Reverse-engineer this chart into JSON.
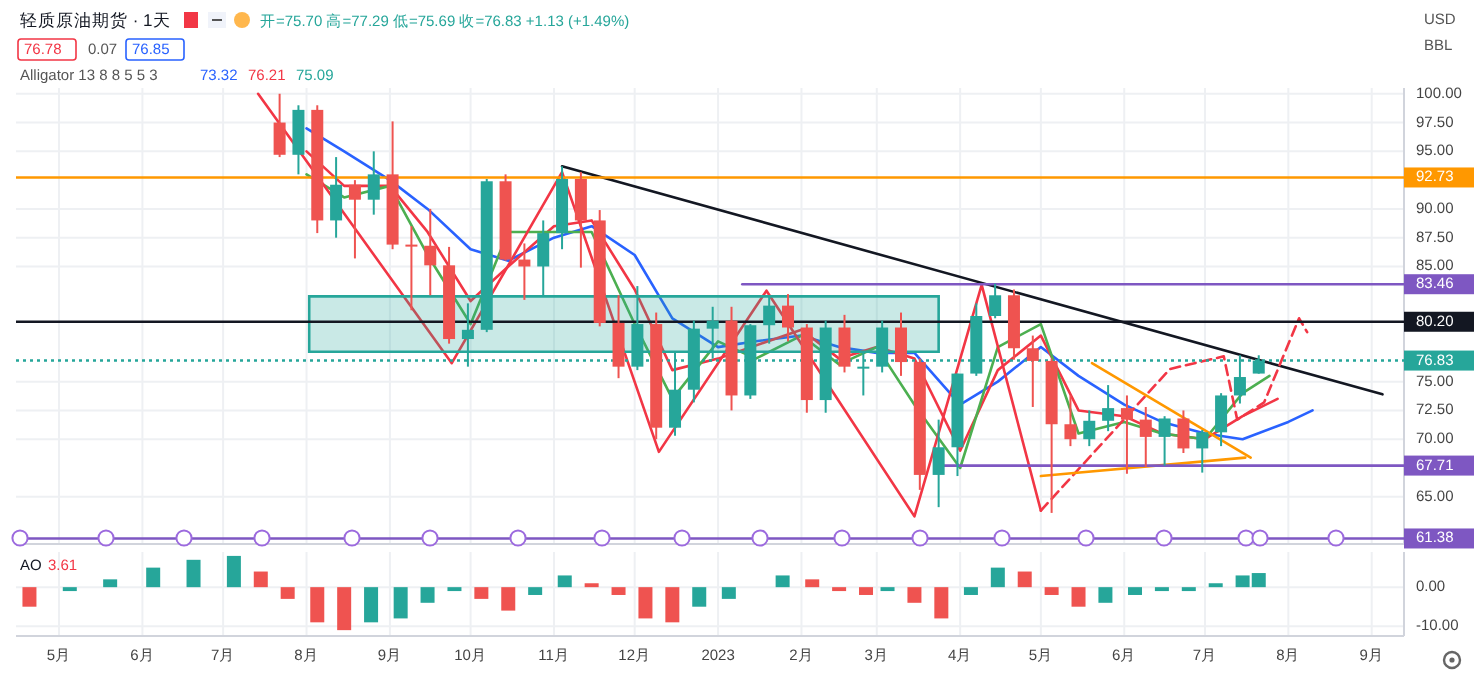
{
  "chart_data": [
    {
      "type": "candlestick",
      "title": "轻质原油期货 · 1天",
      "annotations": [
        "开=75.70 高=77.29 低=75.69 收=76.83 +1.13 (+1.49%)",
        "76.78",
        "0.07",
        "76.85",
        "Alligator 13 8 8 5 5 3",
        "73.32",
        "76.21",
        "75.09",
        "USD",
        "BBL"
      ],
      "xlim": [
        "2022-04-15",
        "2023-09-13"
      ],
      "ylim": [
        60.9,
        100.5
      ],
      "xticks": [
        {
          "value": "2022-05-01",
          "label": null
        },
        {
          "value": "2022-06-01",
          "label": null
        },
        {
          "value": "2022-07-01",
          "label": null
        },
        {
          "value": "2022-08-01",
          "label": null
        },
        {
          "value": "2022-09-01",
          "label": null
        },
        {
          "value": "2022-10-01",
          "label": null
        },
        {
          "value": "2022-11-01",
          "label": null
        },
        {
          "value": "2022-12-01",
          "label": null
        },
        {
          "value": "2023-01-01",
          "label": null
        },
        {
          "value": "2023-02-01",
          "label": null
        },
        {
          "value": "2023-03-01",
          "label": null
        },
        {
          "value": "2023-04-01",
          "label": null
        },
        {
          "value": "2023-05-01",
          "label": null
        },
        {
          "value": "2023-06-01",
          "label": null
        },
        {
          "value": "2023-07-01",
          "label": null
        },
        {
          "value": "2023-08-01",
          "label": null
        },
        {
          "value": "2023-09-01",
          "label": null
        }
      ],
      "yticks": [
        {
          "value": 100,
          "label": "100.00"
        },
        {
          "value": 97.5,
          "label": "97.50"
        },
        {
          "value": 95,
          "label": "95.00"
        },
        {
          "value": 90,
          "label": "90.00"
        },
        {
          "value": 87.5,
          "label": "87.50"
        },
        {
          "value": 85,
          "label": "85.00"
        },
        {
          "value": 75,
          "label": "75.00"
        },
        {
          "value": 72.5,
          "label": "72.50"
        },
        {
          "value": 70,
          "label": "70.00"
        },
        {
          "value": 65,
          "label": "65.00"
        }
      ],
      "tick_labels": "y",
      "grid": true,
      "x": [
        "2022-07-22",
        "2022-07-29",
        "2022-08-05",
        "2022-08-12",
        "2022-08-19",
        "2022-08-26",
        "2022-09-02",
        "2022-09-09",
        "2022-09-16",
        "2022-09-23",
        "2022-09-30",
        "2022-10-07",
        "2022-10-14",
        "2022-10-21",
        "2022-10-28",
        "2022-11-04",
        "2022-11-11",
        "2022-11-18",
        "2022-11-25",
        "2022-12-02",
        "2022-12-09",
        "2022-12-16",
        "2022-12-23",
        "2022-12-30",
        "2023-01-06",
        "2023-01-13",
        "2023-01-20",
        "2023-01-27",
        "2023-02-03",
        "2023-02-10",
        "2023-02-17",
        "2023-02-24",
        "2023-03-03",
        "2023-03-10",
        "2023-03-17",
        "2023-03-24",
        "2023-03-31",
        "2023-04-07",
        "2023-04-14",
        "2023-04-21",
        "2023-04-28",
        "2023-05-05",
        "2023-05-12",
        "2023-05-19",
        "2023-05-26",
        "2023-06-02",
        "2023-06-09",
        "2023-06-16",
        "2023-06-23",
        "2023-06-30",
        "2023-07-07",
        "2023-07-14",
        "2023-07-21"
      ],
      "ohlc": [
        [
          97.5,
          100,
          94.5,
          94.7
        ],
        [
          94.7,
          99,
          93,
          98.6
        ],
        [
          98.6,
          99,
          87.9,
          89
        ],
        [
          89,
          94.5,
          87.5,
          92.1
        ],
        [
          92.1,
          92.5,
          85.7,
          90.8
        ],
        [
          90.8,
          95,
          89.5,
          93
        ],
        [
          93,
          97.6,
          86.5,
          86.9
        ],
        [
          86.9,
          88.5,
          81.2,
          86.8
        ],
        [
          86.8,
          90,
          82.5,
          85.1
        ],
        [
          85.1,
          86.7,
          78.3,
          78.7
        ],
        [
          78.7,
          81.8,
          76.3,
          79.5
        ],
        [
          79.5,
          92.6,
          79.3,
          92.4
        ],
        [
          92.4,
          93,
          85.5,
          85.6
        ],
        [
          85.6,
          87,
          82.1,
          85
        ],
        [
          85,
          89,
          82.5,
          87.9
        ],
        [
          87.9,
          93.7,
          86.5,
          92.6
        ],
        [
          92.6,
          93.2,
          84.9,
          89
        ],
        [
          89,
          89.9,
          79.8,
          80.1
        ],
        [
          80.1,
          82.5,
          75.3,
          76.3
        ],
        [
          76.3,
          83.3,
          76,
          80
        ],
        [
          80,
          81,
          70,
          71
        ],
        [
          71,
          77.5,
          70.3,
          74.3
        ],
        [
          74.3,
          80.3,
          73.2,
          79.6
        ],
        [
          79.6,
          81.5,
          77,
          80.3
        ],
        [
          80.3,
          81.5,
          72.5,
          73.8
        ],
        [
          73.8,
          80,
          73.5,
          79.9
        ],
        [
          79.9,
          82.4,
          78.3,
          81.6
        ],
        [
          81.6,
          82.6,
          78.5,
          79.7
        ],
        [
          79.7,
          80,
          72.3,
          73.4
        ],
        [
          73.4,
          80.3,
          72.3,
          79.7
        ],
        [
          79.7,
          80.8,
          75.8,
          76.3
        ],
        [
          76.3,
          77.5,
          73.8,
          76.3
        ],
        [
          76.3,
          80.3,
          75.8,
          79.7
        ],
        [
          79.7,
          81,
          75.5,
          76.7
        ],
        [
          76.7,
          77,
          65.6,
          66.9
        ],
        [
          66.9,
          71.7,
          64.1,
          69.3
        ],
        [
          69.3,
          75.7,
          66.8,
          75.7
        ],
        [
          75.7,
          81.8,
          75.5,
          80.7
        ],
        [
          80.7,
          83.5,
          80.5,
          82.5
        ],
        [
          82.5,
          83,
          76.9,
          77.9
        ],
        [
          77.9,
          79,
          72.8,
          76.8
        ],
        [
          76.8,
          77,
          63.6,
          71.3
        ],
        [
          71.3,
          73.8,
          69.4,
          70
        ],
        [
          70,
          72.5,
          69.4,
          71.6
        ],
        [
          71.6,
          74.7,
          70.7,
          72.7
        ],
        [
          72.7,
          73.8,
          67,
          71.7
        ],
        [
          71.7,
          72.8,
          67.6,
          70.2
        ],
        [
          70.2,
          72,
          67.7,
          71.8
        ],
        [
          71.8,
          72.5,
          68.8,
          69.2
        ],
        [
          69.2,
          70.8,
          67.1,
          70.6
        ],
        [
          70.6,
          74,
          69.4,
          73.8
        ],
        [
          73.8,
          77.3,
          73.1,
          75.4
        ],
        [
          75.7,
          77.29,
          75.69,
          76.83
        ]
      ],
      "series": [
        {
          "type": "line",
          "color": "#2962ff",
          "x": [
            "2022-08-01",
            "2022-08-15",
            "2022-09-01",
            "2022-09-15",
            "2022-10-01",
            "2022-10-15",
            "2022-11-01",
            "2022-11-15",
            "2022-12-01",
            "2022-12-15",
            "2023-01-01",
            "2023-01-15",
            "2023-02-01",
            "2023-02-15",
            "2023-03-01",
            "2023-03-15",
            "2023-04-01",
            "2023-04-15",
            "2023-05-01",
            "2023-05-15",
            "2023-06-01",
            "2023-06-15",
            "2023-07-01",
            "2023-07-15",
            "2023-08-01",
            "2023-08-10"
          ],
          "values": [
            97,
            95,
            92.5,
            90,
            86.5,
            85.5,
            87.5,
            88.5,
            86,
            80.5,
            78,
            78.5,
            79,
            78,
            77.5,
            77.5,
            73,
            75,
            78,
            75.5,
            73,
            71.5,
            70.5,
            70,
            71.5,
            72.5
          ]
        },
        {
          "type": "line",
          "color": "#f23645",
          "x": [
            "2022-08-01",
            "2022-08-15",
            "2022-09-01",
            "2022-09-15",
            "2022-10-01",
            "2022-10-15",
            "2022-11-01",
            "2022-11-15",
            "2022-12-01",
            "2022-12-15",
            "2023-01-01",
            "2023-01-15",
            "2023-02-01",
            "2023-02-15",
            "2023-03-01",
            "2023-03-15",
            "2023-04-01",
            "2023-04-15",
            "2023-05-01",
            "2023-05-15",
            "2023-06-01",
            "2023-06-15",
            "2023-07-01",
            "2023-07-15",
            "2023-07-28"
          ],
          "values": [
            95,
            92,
            92,
            88,
            82,
            85,
            88.5,
            89,
            83,
            76,
            77,
            null,
            79.5,
            77,
            78,
            77,
            69,
            76,
            79,
            72.5,
            72,
            70.5,
            70,
            72,
            73.5
          ]
        },
        {
          "type": "line",
          "color": "#4caf50",
          "x": [
            "2022-08-01",
            "2022-08-15",
            "2022-09-01",
            "2022-09-15",
            "2022-10-01",
            "2022-10-15",
            "2022-11-01",
            "2022-11-15",
            "2022-12-01",
            "2022-12-15",
            "2023-01-01",
            "2023-01-15",
            "2023-02-01",
            "2023-02-15",
            "2023-03-01",
            "2023-03-15",
            "2023-04-01",
            "2023-04-15",
            "2023-05-01",
            "2023-05-15",
            "2023-06-01",
            "2023-06-15",
            "2023-07-01",
            "2023-07-15",
            "2023-07-25"
          ],
          "values": [
            93,
            91,
            92,
            86,
            80,
            88,
            88,
            88,
            80,
            73.5,
            78.5,
            77,
            79,
            76.5,
            78,
            73,
            67.5,
            78,
            80,
            70.5,
            71.5,
            70.5,
            70,
            74,
            75.5
          ]
        },
        {
          "type": "line",
          "color": "#131722",
          "x": [
            "2022-11-04",
            "2023-09-05"
          ],
          "values": [
            93.7,
            73.9
          ]
        },
        {
          "type": "line",
          "color": "#f23645",
          "x": [
            "2022-07-14",
            "2022-09-24",
            "2022-11-04",
            "2022-12-10",
            "2023-01-19",
            "2023-03-15",
            "2023-04-09",
            "2023-05-01"
          ],
          "values": [
            100,
            76.6,
            93.2,
            68.9,
            82.9,
            63.3,
            83.4,
            63.8
          ]
        },
        {
          "type": "line",
          "color": "#f23645",
          "line_style": "dashed",
          "x": [
            "2023-05-01",
            "2023-06-18",
            "2023-07-08",
            "2023-07-13",
            "2023-07-23",
            "2023-08-05",
            "2023-08-08"
          ],
          "values": [
            63.8,
            76.1,
            77.2,
            71.7,
            73.2,
            80.5,
            79.3
          ]
        },
        {
          "type": "line",
          "color": "#ff9800",
          "x": [
            "2023-05-20",
            "2023-07-18"
          ],
          "values": [
            76.6,
            68.4
          ]
        },
        {
          "type": "line",
          "color": "#ff9800",
          "x": [
            "2023-05-01",
            "2023-07-16"
          ],
          "values": [
            66.8,
            68.4
          ]
        },
        {
          "type": "line",
          "name": "83.46",
          "color": "#7e57c2",
          "x": [
            "2023-01-10",
            "2023-09-13"
          ],
          "values": [
            83.46,
            83.46
          ]
        },
        {
          "type": "line",
          "color": "#26a69a",
          "x": [
            "2022-08-02",
            "2023-03-24"
          ],
          "values": [
            null,
            null
          ],
          "lower": [
            77.6,
            77.6
          ],
          "upper": [
            82.4,
            82.4
          ]
        },
        {
          "type": "line",
          "name": "67.71",
          "color": "#7e57c2",
          "x": [
            "2023-03-25",
            "2023-09-13"
          ],
          "values": [
            67.71,
            67.71
          ]
        }
      ],
      "ref_lines": [
        {
          "axis": "y",
          "value": 92.73,
          "label": "92.73",
          "color": "#ff9800"
        },
        {
          "axis": "y",
          "value": 80.2,
          "label": "80.20",
          "color": "#131722"
        },
        {
          "axis": "y",
          "value": 76.83,
          "label": "76.83",
          "color": "#26a69a",
          "line_style": "dotted"
        },
        {
          "axis": "y",
          "value": 61.38,
          "label": "61.38",
          "color": "#7e57c2"
        }
      ]
    },
    {
      "type": "bar",
      "title": "AO",
      "annotations": [
        "3.61"
      ],
      "xlim": [
        "2022-04-15",
        "2023-09-13"
      ],
      "ylim": [
        -12.5,
        9
      ],
      "xticks": [
        {
          "value": "2022-05-01",
          "label": "5月"
        },
        {
          "value": "2022-06-01",
          "label": "6月"
        },
        {
          "value": "2022-07-01",
          "label": "7月"
        },
        {
          "value": "2022-08-01",
          "label": "8月"
        },
        {
          "value": "2022-09-01",
          "label": "9月"
        },
        {
          "value": "2022-10-01",
          "label": "10月"
        },
        {
          "value": "2022-11-01",
          "label": "11月"
        },
        {
          "value": "2022-12-01",
          "label": "12月"
        },
        {
          "value": "2023-01-01",
          "label": "2023"
        },
        {
          "value": "2023-02-01",
          "label": "2月"
        },
        {
          "value": "2023-03-01",
          "label": "3月"
        },
        {
          "value": "2023-04-01",
          "label": "4月"
        },
        {
          "value": "2023-05-01",
          "label": "5月"
        },
        {
          "value": "2023-06-01",
          "label": "6月"
        },
        {
          "value": "2023-07-01",
          "label": "7月"
        },
        {
          "value": "2023-08-01",
          "label": "8月"
        },
        {
          "value": "2023-09-01",
          "label": "9月"
        }
      ],
      "yticks": [
        {
          "value": 0,
          "label": "0.00"
        },
        {
          "value": -10,
          "label": "-10.00"
        }
      ],
      "grid": true,
      "x": [
        "2022-04-20",
        "2022-05-05",
        "2022-05-20",
        "2022-06-05",
        "2022-06-20",
        "2022-07-05",
        "2022-07-15",
        "2022-07-25",
        "2022-08-05",
        "2022-08-15",
        "2022-08-25",
        "2022-09-05",
        "2022-09-15",
        "2022-09-25",
        "2022-10-05",
        "2022-10-15",
        "2022-10-25",
        "2022-11-05",
        "2022-11-15",
        "2022-11-25",
        "2022-12-05",
        "2022-12-15",
        "2022-12-25",
        "2023-01-05",
        "2023-01-15",
        "2023-01-25",
        "2023-02-05",
        "2023-02-15",
        "2023-02-25",
        "2023-03-05",
        "2023-03-15",
        "2023-03-25",
        "2023-04-05",
        "2023-04-15",
        "2023-04-25",
        "2023-05-05",
        "2023-05-15",
        "2023-05-25",
        "2023-06-05",
        "2023-06-15",
        "2023-06-25",
        "2023-07-05",
        "2023-07-15",
        "2023-07-21"
      ],
      "values": [
        -5,
        -1,
        2,
        5,
        7,
        8,
        4,
        -3,
        -9,
        -11,
        -9,
        -8,
        -4,
        -1,
        -3,
        -6,
        -2,
        3,
        1,
        -2,
        -8,
        -9,
        -5,
        -3,
        0,
        3,
        2,
        -1,
        -2,
        -1,
        -4,
        -8,
        -2,
        5,
        4,
        -2,
        -5,
        -4,
        -2,
        -1,
        -1,
        1,
        3,
        3.61
      ],
      "colors": [
        "#ef5350",
        "#26a69a",
        "#26a69a",
        "#26a69a",
        "#26a69a",
        "#26a69a",
        "#ef5350",
        "#ef5350",
        "#ef5350",
        "#ef5350",
        "#26a69a",
        "#26a69a",
        "#26a69a",
        "#26a69a",
        "#ef5350",
        "#ef5350",
        "#26a69a",
        "#26a69a",
        "#ef5350",
        "#ef5350",
        "#ef5350",
        "#ef5350",
        "#26a69a",
        "#26a69a",
        "#26a69a",
        "#26a69a",
        "#ef5350",
        "#ef5350",
        "#ef5350",
        "#26a69a",
        "#ef5350",
        "#ef5350",
        "#26a69a",
        "#26a69a",
        "#ef5350",
        "#ef5350",
        "#ef5350",
        "#26a69a",
        "#26a69a",
        "#26a69a",
        "#26a69a",
        "#26a69a",
        "#26a69a",
        "#26a69a"
      ]
    }
  ]
}
